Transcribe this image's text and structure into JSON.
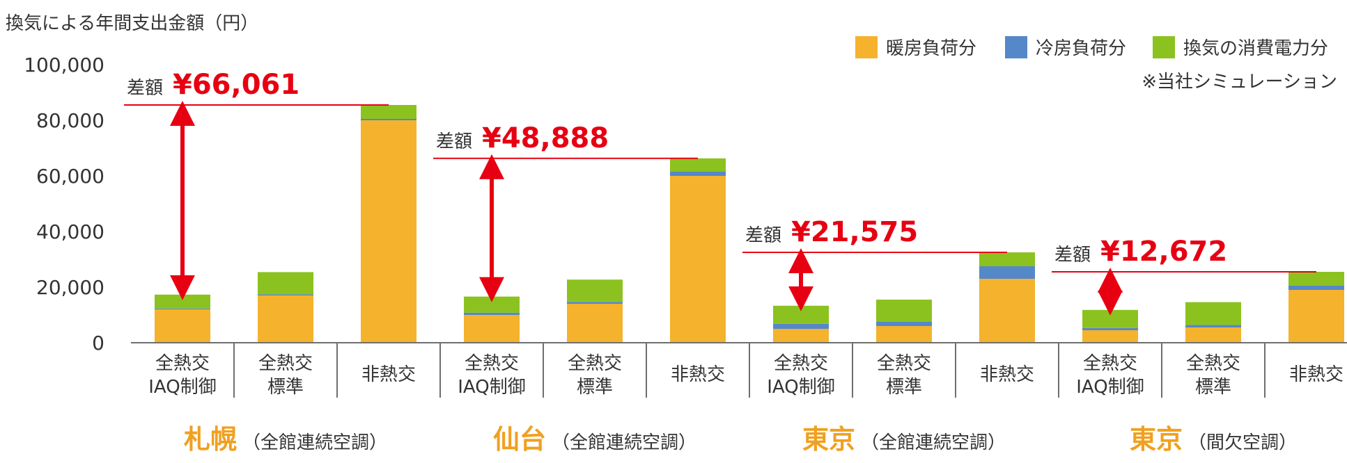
{
  "chart_data": {
    "type": "bar",
    "stacked": true,
    "title": "",
    "ylabel": "換気による年間支出金額（円）",
    "xlabel": "",
    "ylim": [
      0,
      100000
    ],
    "yticks": [
      0,
      20000,
      40000,
      60000,
      80000,
      100000
    ],
    "ytick_labels": [
      "0",
      "20,000",
      "40,000",
      "60,000",
      "80,000",
      "100,000"
    ],
    "grid": false,
    "legend_position": "top-right",
    "note": "※当社シミュレーション",
    "diff_label": "差額",
    "colors": {
      "heating": "#f5b22d",
      "cooling": "#5588c8",
      "ventilation": "#8cc21f",
      "accent": "#e60012",
      "group": "#f0a020"
    },
    "categories": [
      [
        "全熱交",
        "IAQ制御"
      ],
      [
        "全熱交",
        "標準"
      ],
      [
        "非熱交"
      ],
      [
        "全熱交",
        "IAQ制御"
      ],
      [
        "全熱交",
        "標準"
      ],
      [
        "非熱交"
      ],
      [
        "全熱交",
        "IAQ制御"
      ],
      [
        "全熱交",
        "標準"
      ],
      [
        "非熱交"
      ],
      [
        "全熱交",
        "IAQ制御"
      ],
      [
        "全熱交",
        "標準"
      ],
      [
        "非熱交"
      ]
    ],
    "series": [
      {
        "name": "暖房負荷分",
        "color": "#f5b22d",
        "values": [
          12000,
          17000,
          80000,
          10000,
          14000,
          60000,
          5000,
          6000,
          23000,
          4500,
          5500,
          19000
        ]
      },
      {
        "name": "冷房負荷分",
        "color": "#5588c8",
        "values": [
          300,
          400,
          500,
          800,
          700,
          1500,
          1800,
          1600,
          4500,
          800,
          900,
          1500
        ]
      },
      {
        "name": "換気の消費電力分",
        "color": "#8cc21f",
        "values": [
          5000,
          8000,
          5000,
          5800,
          8000,
          4800,
          6500,
          7900,
          5000,
          6500,
          8200,
          5000
        ]
      }
    ],
    "groups": [
      {
        "name": "札幌",
        "sub": "（全館連続空調）",
        "diff": "¥66,061"
      },
      {
        "name": "仙台",
        "sub": "（全館連続空調）",
        "diff": "¥48,888"
      },
      {
        "name": "東京",
        "sub": "（全館連続空調）",
        "diff": "¥21,575"
      },
      {
        "name": "東京",
        "sub": "（間欠空調）",
        "diff": "¥12,672"
      }
    ]
  }
}
